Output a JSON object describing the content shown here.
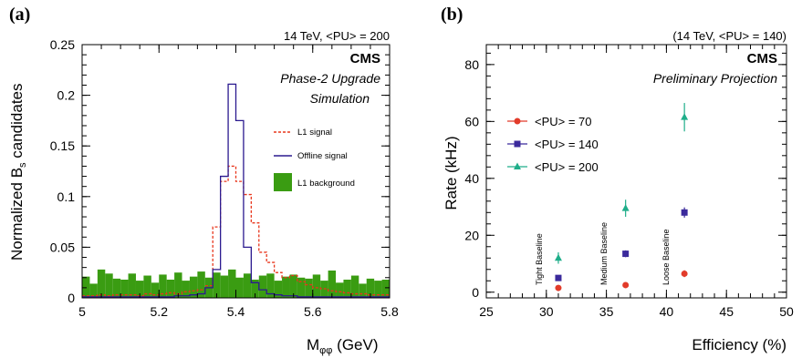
{
  "panels": {
    "a": {
      "letter": "(a)",
      "header": "14 TeV, <PU> = 200",
      "cms": "CMS",
      "subtitle1": "Phase-2 Upgrade",
      "subtitle2": "Simulation",
      "legend": [
        "L1 signal",
        "Offline signal",
        "L1 background"
      ]
    },
    "b": {
      "letter": "(b)",
      "header": "(14 TeV, <PU> = 140)",
      "cms": "CMS",
      "subtitle": "Preliminary Projection",
      "legend": [
        "<PU> =  70",
        "<PU> = 140",
        "<PU> = 200"
      ],
      "annotations": [
        "Tight Baseline",
        "Medium Baseline",
        "Loose Baseline"
      ]
    }
  },
  "colors": {
    "l1_signal": "#e8361c",
    "offline_signal": "#2b1a8f",
    "background": "#3a9c12",
    "pu70": "#e23b2a",
    "pu140": "#3b2a9c",
    "pu200": "#1fae8a"
  },
  "chart_data": [
    {
      "type": "bar",
      "xlabel": "M",
      "xlabel_sub": "φφ",
      "xlabel_unit": " (GeV)",
      "ylabel": "Normalized B",
      "ylabel_sub": "s",
      "ylabel_end": " candidates",
      "xlim": [
        5.0,
        5.8
      ],
      "ylim": [
        0,
        0.25
      ],
      "x_ticks": [
        "5",
        "5.2",
        "5.4",
        "5.6",
        "5.8"
      ],
      "x_tick_values": [
        5.0,
        5.2,
        5.4,
        5.6,
        5.8
      ],
      "y_ticks": [
        "0",
        "0.05",
        "0.1",
        "0.15",
        "0.2",
        "0.25"
      ],
      "y_tick_values": [
        0,
        0.05,
        0.1,
        0.15,
        0.2,
        0.25
      ],
      "bin_width": 0.02,
      "series": [
        {
          "name": "L1 background",
          "style": "filled",
          "values": [
            0.021,
            0.014,
            0.028,
            0.024,
            0.019,
            0.018,
            0.024,
            0.017,
            0.022,
            0.015,
            0.023,
            0.018,
            0.025,
            0.017,
            0.021,
            0.026,
            0.02,
            0.025,
            0.022,
            0.028,
            0.02,
            0.024,
            0.018,
            0.022,
            0.024,
            0.017,
            0.021,
            0.023,
            0.02,
            0.019,
            0.023,
            0.017,
            0.027,
            0.015,
            0.018,
            0.022,
            0.014,
            0.019,
            0.017,
            0.018
          ]
        },
        {
          "name": "L1 signal",
          "style": "dashed",
          "values": [
            0.002,
            0.002,
            0.003,
            0.002,
            0.003,
            0.003,
            0.003,
            0.002,
            0.004,
            0.003,
            0.004,
            0.005,
            0.004,
            0.006,
            0.007,
            0.008,
            0.012,
            0.07,
            0.115,
            0.13,
            0.115,
            0.102,
            0.074,
            0.045,
            0.035,
            0.025,
            0.02,
            0.022,
            0.016,
            0.013,
            0.01,
            0.009,
            0.007,
            0.006,
            0.005,
            0.004,
            0.004,
            0.003,
            0.003,
            0.003
          ]
        },
        {
          "name": "Offline signal",
          "style": "solid",
          "values": [
            0.001,
            0.001,
            0.001,
            0.001,
            0.001,
            0.001,
            0.001,
            0.001,
            0.001,
            0.001,
            0.001,
            0.001,
            0.002,
            0.002,
            0.003,
            0.004,
            0.01,
            0.028,
            0.12,
            0.211,
            0.175,
            0.05,
            0.015,
            0.008,
            0.004,
            0.003,
            0.002,
            0.002,
            0.001,
            0.001,
            0.001,
            0.001,
            0.001,
            0.001,
            0.001,
            0.001,
            0.001,
            0.001,
            0.001,
            0.001
          ]
        }
      ]
    },
    {
      "type": "scatter",
      "xlabel": "Efficiency (%)",
      "ylabel": "Rate (kHz)",
      "xlim": [
        25,
        50
      ],
      "ylim": [
        -2,
        87
      ],
      "x_ticks": [
        "25",
        "30",
        "35",
        "40",
        "45",
        "50"
      ],
      "x_tick_values": [
        25,
        30,
        35,
        40,
        45,
        50
      ],
      "y_ticks": [
        "0",
        "20",
        "40",
        "60",
        "80"
      ],
      "y_tick_values": [
        0,
        20,
        40,
        60,
        80
      ],
      "series": [
        {
          "name": "<PU> =  70",
          "marker": "circle",
          "x": [
            31.0,
            36.6,
            41.5
          ],
          "y": [
            1.5,
            2.5,
            6.5
          ],
          "yerr": [
            0.4,
            0.5,
            1.2
          ]
        },
        {
          "name": "<PU> = 140",
          "marker": "square",
          "x": [
            31.0,
            36.6,
            41.5
          ],
          "y": [
            5.0,
            13.5,
            28.0
          ],
          "yerr": [
            1.0,
            1.2,
            1.8
          ]
        },
        {
          "name": "<PU> = 200",
          "marker": "triangle",
          "x": [
            31.0,
            36.6,
            41.5
          ],
          "y": [
            12.0,
            29.5,
            61.5
          ],
          "yerr": [
            2.0,
            3.0,
            5.0
          ]
        }
      ]
    }
  ]
}
